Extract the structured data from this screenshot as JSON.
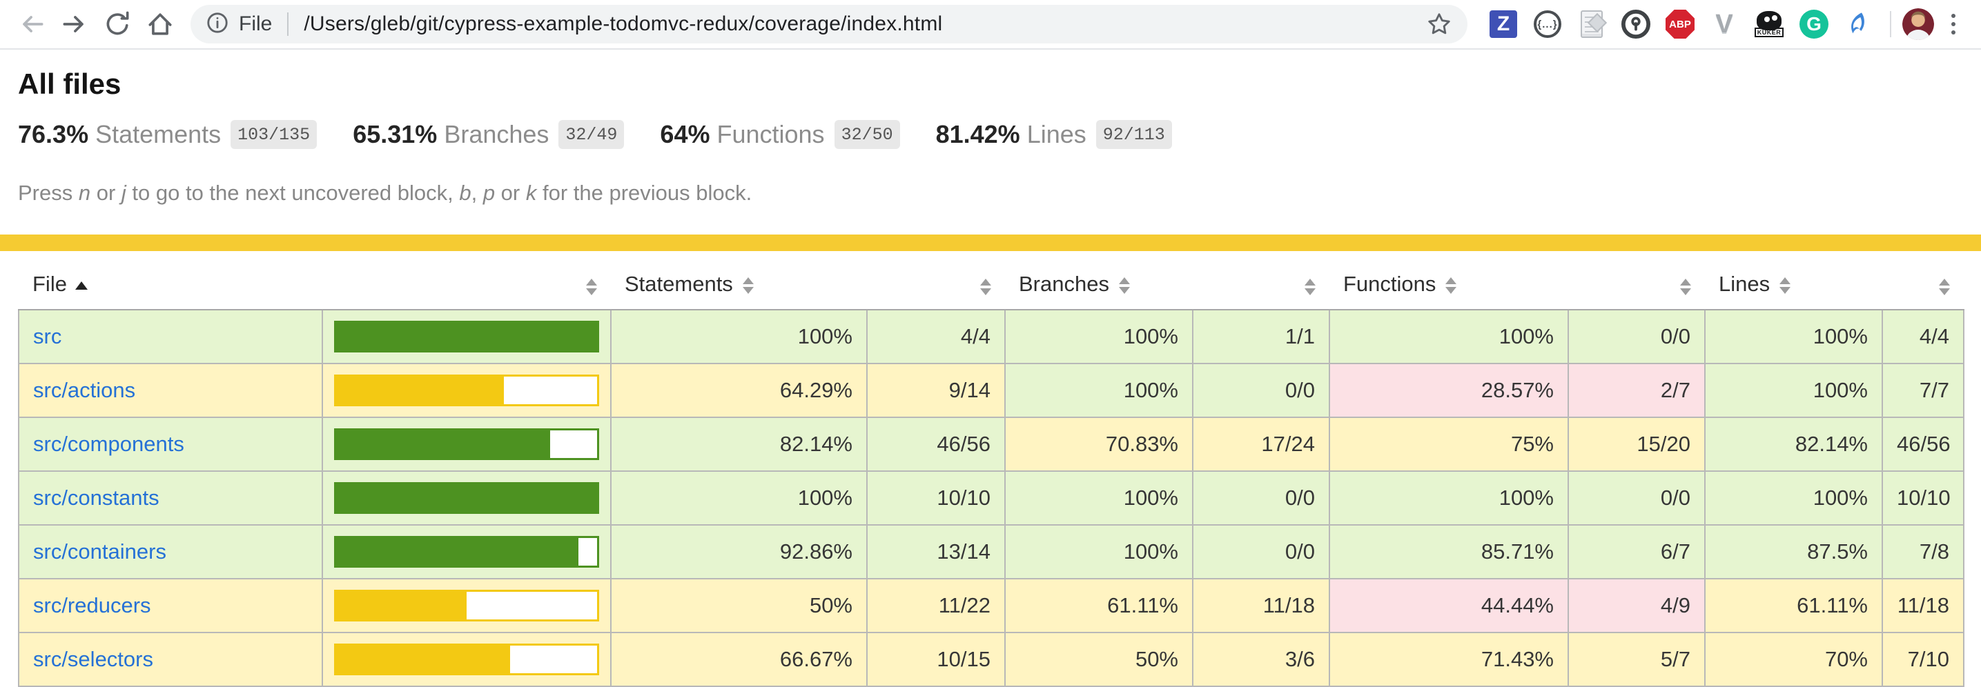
{
  "browser": {
    "scheme_label": "File",
    "url": "/Users/gleb/git/cypress-example-todomvc-redux/coverage/index.html",
    "extensions": {
      "zotero_glyph": "Z",
      "json_viewer_glyph": "{...}",
      "adblock_glyph": "ABP",
      "vue_glyph": "V",
      "kuker_glyph": "KUKER",
      "grammarly_glyph": "G"
    }
  },
  "page": {
    "title": "All files",
    "stats": [
      {
        "pct": "76.3%",
        "label": "Statements",
        "frac": "103/135"
      },
      {
        "pct": "65.31%",
        "label": "Branches",
        "frac": "32/49"
      },
      {
        "pct": "64%",
        "label": "Functions",
        "frac": "32/50"
      },
      {
        "pct": "81.42%",
        "label": "Lines",
        "frac": "92/113"
      }
    ],
    "hint": {
      "p1": "Press ",
      "k1": "n",
      "p2": " or ",
      "k2": "j",
      "p3": " to go to the next uncovered block, ",
      "k3": "b",
      "p4": ", ",
      "k4": "p",
      "p5": " or ",
      "k5": "k",
      "p6": " for the previous block."
    }
  },
  "table": {
    "headers": {
      "file": "File",
      "statements": "Statements",
      "branches": "Branches",
      "functions": "Functions",
      "lines": "Lines"
    },
    "rows": [
      {
        "name": "src",
        "bar_pct": 100,
        "bar_level": "high",
        "statements": {
          "pct": "100%",
          "frac": "4/4",
          "level": "high"
        },
        "branches": {
          "pct": "100%",
          "frac": "1/1",
          "level": "high"
        },
        "functions": {
          "pct": "100%",
          "frac": "0/0",
          "level": "high"
        },
        "lines": {
          "pct": "100%",
          "frac": "4/4",
          "level": "high"
        }
      },
      {
        "name": "src/actions",
        "bar_pct": 64.29,
        "bar_level": "medium",
        "statements": {
          "pct": "64.29%",
          "frac": "9/14",
          "level": "medium"
        },
        "branches": {
          "pct": "100%",
          "frac": "0/0",
          "level": "high"
        },
        "functions": {
          "pct": "28.57%",
          "frac": "2/7",
          "level": "low"
        },
        "lines": {
          "pct": "100%",
          "frac": "7/7",
          "level": "high"
        }
      },
      {
        "name": "src/components",
        "bar_pct": 82.14,
        "bar_level": "high",
        "statements": {
          "pct": "82.14%",
          "frac": "46/56",
          "level": "high"
        },
        "branches": {
          "pct": "70.83%",
          "frac": "17/24",
          "level": "medium"
        },
        "functions": {
          "pct": "75%",
          "frac": "15/20",
          "level": "medium"
        },
        "lines": {
          "pct": "82.14%",
          "frac": "46/56",
          "level": "high"
        }
      },
      {
        "name": "src/constants",
        "bar_pct": 100,
        "bar_level": "high",
        "statements": {
          "pct": "100%",
          "frac": "10/10",
          "level": "high"
        },
        "branches": {
          "pct": "100%",
          "frac": "0/0",
          "level": "high"
        },
        "functions": {
          "pct": "100%",
          "frac": "0/0",
          "level": "high"
        },
        "lines": {
          "pct": "100%",
          "frac": "10/10",
          "level": "high"
        }
      },
      {
        "name": "src/containers",
        "bar_pct": 92.86,
        "bar_level": "high",
        "statements": {
          "pct": "92.86%",
          "frac": "13/14",
          "level": "high"
        },
        "branches": {
          "pct": "100%",
          "frac": "0/0",
          "level": "high"
        },
        "functions": {
          "pct": "85.71%",
          "frac": "6/7",
          "level": "high"
        },
        "lines": {
          "pct": "87.5%",
          "frac": "7/8",
          "level": "high"
        }
      },
      {
        "name": "src/reducers",
        "bar_pct": 50,
        "bar_level": "medium",
        "statements": {
          "pct": "50%",
          "frac": "11/22",
          "level": "medium"
        },
        "branches": {
          "pct": "61.11%",
          "frac": "11/18",
          "level": "medium"
        },
        "functions": {
          "pct": "44.44%",
          "frac": "4/9",
          "level": "low"
        },
        "lines": {
          "pct": "61.11%",
          "frac": "11/18",
          "level": "medium"
        }
      },
      {
        "name": "src/selectors",
        "bar_pct": 66.67,
        "bar_level": "medium",
        "statements": {
          "pct": "66.67%",
          "frac": "10/15",
          "level": "medium"
        },
        "branches": {
          "pct": "50%",
          "frac": "3/6",
          "level": "medium"
        },
        "functions": {
          "pct": "71.43%",
          "frac": "5/7",
          "level": "medium"
        },
        "lines": {
          "pct": "70%",
          "frac": "7/10",
          "level": "medium"
        }
      }
    ]
  },
  "colors": {
    "status_line": "#f5cb32",
    "level_high_bg": "#e6f5d0",
    "level_medium_bg": "#fff4c2",
    "level_low_bg": "#fce1e5",
    "bar_high": "#4d9221",
    "bar_medium": "#f3c913",
    "link_blue": "#2571d6"
  }
}
